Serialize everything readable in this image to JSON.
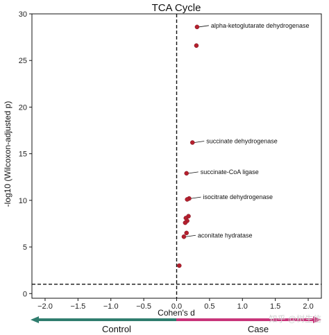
{
  "chart_data": {
    "type": "scatter",
    "title": "TCA Cycle",
    "xlabel": "Cohen's d",
    "ylabel": "-log10 (Wilcoxon-adjusted p)",
    "xlim": [
      -2.2,
      2.2
    ],
    "ylim": [
      -0.5,
      30
    ],
    "xticks": [
      -2.0,
      -1.5,
      -1.0,
      -0.5,
      0.0,
      0.5,
      1.0,
      1.5,
      2.0
    ],
    "yticks": [
      0,
      5,
      10,
      15,
      20,
      25,
      30
    ],
    "xtick_labels": [
      "−2.0",
      "−1.5",
      "−1.0",
      "−0.5",
      "0.0",
      "0.5",
      "1.0",
      "1.5",
      "2.0"
    ],
    "ytick_labels": [
      "0",
      "5",
      "10",
      "15",
      "20",
      "25",
      "30"
    ],
    "grid": false,
    "point_color": "#b5202e",
    "reference_lines": {
      "vertical_x": 0.0,
      "horizontal_y": 1.0,
      "style": "dashed"
    },
    "points": [
      {
        "x": 0.31,
        "y": 28.6
      },
      {
        "x": 0.3,
        "y": 26.6
      },
      {
        "x": 0.24,
        "y": 16.2
      },
      {
        "x": 0.15,
        "y": 12.9
      },
      {
        "x": 0.19,
        "y": 10.2
      },
      {
        "x": 0.16,
        "y": 10.1
      },
      {
        "x": 0.18,
        "y": 8.3
      },
      {
        "x": 0.14,
        "y": 8.1
      },
      {
        "x": 0.16,
        "y": 7.8
      },
      {
        "x": 0.13,
        "y": 7.6
      },
      {
        "x": 0.15,
        "y": 6.5
      },
      {
        "x": 0.11,
        "y": 6.1
      },
      {
        "x": 0.04,
        "y": 3.0
      }
    ],
    "annotations": [
      {
        "text": "alpha-ketoglutarate dehydrogenase",
        "x": 0.31,
        "y": 28.6
      },
      {
        "text": "succinate dehydrogenase",
        "x": 0.24,
        "y": 16.2
      },
      {
        "text": "succinate-CoA ligase",
        "x": 0.15,
        "y": 12.9
      },
      {
        "text": "isocitrate dehydrogenase",
        "x": 0.19,
        "y": 10.2
      },
      {
        "text": "aconitate hydratase",
        "x": 0.11,
        "y": 6.1
      }
    ],
    "direction_arrows": {
      "left": {
        "label": "Control",
        "color": "#2f7d6e"
      },
      "right": {
        "label": "Case",
        "color": "#c8357a"
      }
    }
  },
  "watermark": "知乎 @树生信"
}
